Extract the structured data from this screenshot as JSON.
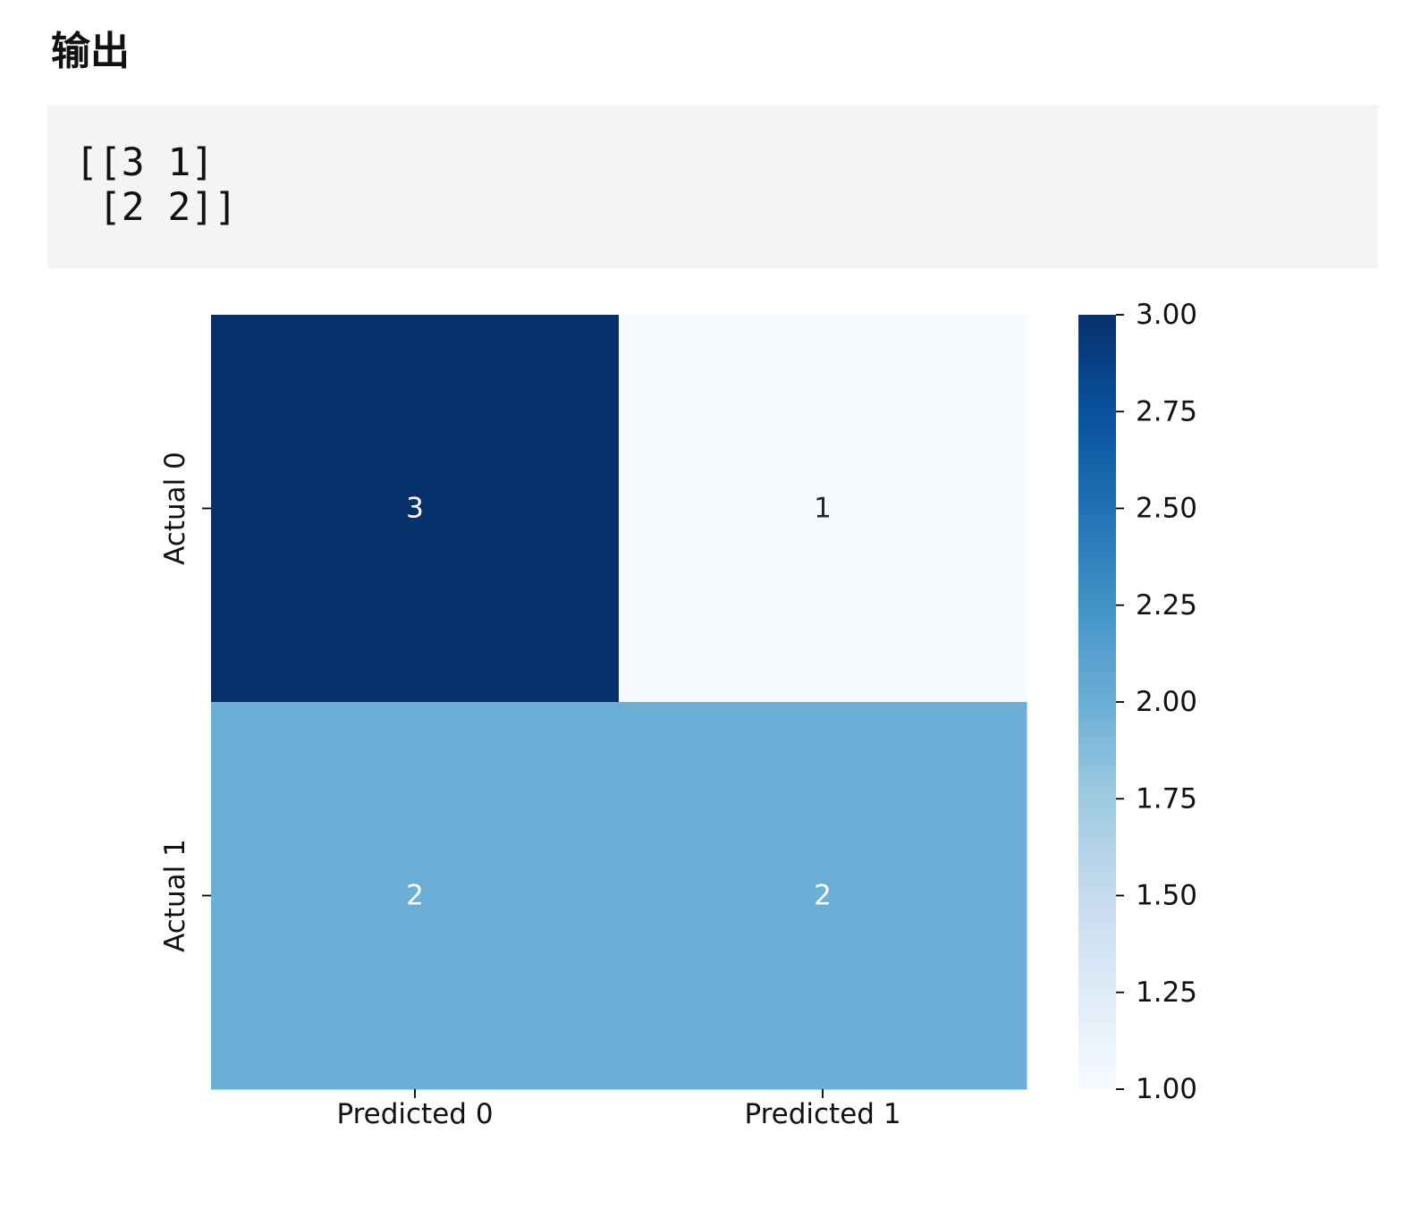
{
  "section_title": "输出",
  "output": {
    "lines": [
      "[[3 1]",
      " [2 2]]"
    ]
  },
  "chart_data": {
    "type": "heatmap",
    "rows": [
      "Actual 0",
      "Actual 1"
    ],
    "columns": [
      "Predicted 0",
      "Predicted 1"
    ],
    "values": [
      [
        3,
        1
      ],
      [
        2,
        2
      ]
    ],
    "colormap": "Blues",
    "colorbar": {
      "range": [
        1.0,
        3.0
      ],
      "ticks": [
        "1.00",
        "1.25",
        "1.50",
        "1.75",
        "2.00",
        "2.25",
        "2.50",
        "2.75",
        "3.00"
      ]
    },
    "cell_text_colors": {
      "dark": "#ffffff",
      "light": "#262626"
    },
    "title": "",
    "xlabel": "",
    "ylabel": ""
  }
}
